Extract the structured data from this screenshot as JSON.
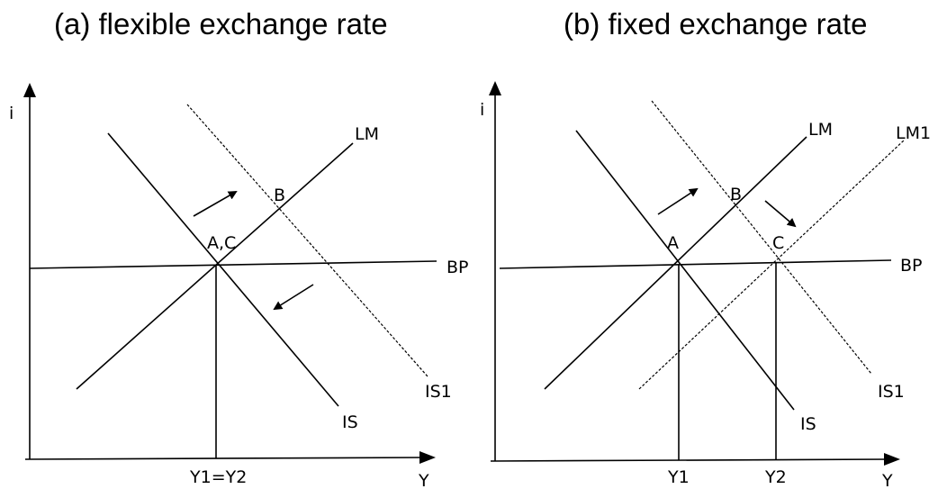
{
  "panels": [
    {
      "title": "(a) flexible exchange rate",
      "y_axis_label": "i",
      "x_axis_label": "Y",
      "curves": {
        "LM": "LM",
        "BP": "BP",
        "IS": "IS",
        "IS1": "IS1"
      },
      "points": {
        "AC": "A,C",
        "B": "B"
      },
      "x_ticks": [
        "Y1=Y2"
      ]
    },
    {
      "title": "(b) fixed exchange rate",
      "y_axis_label": "i",
      "x_axis_label": "Y",
      "curves": {
        "LM": "LM",
        "LM1": "LM1",
        "BP": "BP",
        "IS": "IS",
        "IS1": "IS1"
      },
      "points": {
        "A": "A",
        "B": "B",
        "C": "C"
      },
      "x_ticks": [
        "Y1",
        "Y2"
      ]
    }
  ],
  "colors": {
    "line": "#000000",
    "background": "#ffffff"
  },
  "icons": [
    "arrow-up-right-icon",
    "arrow-down-left-icon",
    "arrow-down-right-icon"
  ]
}
